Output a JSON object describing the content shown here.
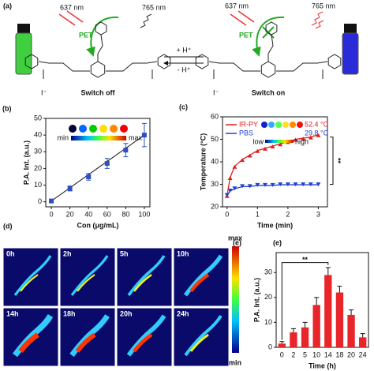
{
  "panel_a": {
    "label": "(a)",
    "wavelength_excite": "637 nm",
    "wavelength_emit": "765 nm",
    "pet": "PET",
    "left_caption": "Switch off",
    "right_caption": "Switch on",
    "forward": "+ H⁺",
    "backward": "- H⁺",
    "counter_ion": "I⁻"
  },
  "panel_d": {
    "label": "(d)",
    "times": [
      "0h",
      "2h",
      "5h",
      "10h",
      "14h",
      "18h",
      "20h",
      "24h"
    ],
    "colorbar_max": "max",
    "colorbar_min": "min"
  },
  "chart_data": [
    {
      "type": "errorline",
      "label": "(b)",
      "xlabel": "Con (μg/mL)",
      "ylabel": "P.A. Int. (a.u.)",
      "x": [
        0,
        20,
        40,
        60,
        80,
        100
      ],
      "values": [
        0.5,
        8,
        15,
        23,
        31,
        40
      ],
      "errors": [
        1,
        1.5,
        2,
        3,
        4,
        7
      ],
      "color": "#2d4fc4",
      "xlim": [
        -6,
        106
      ],
      "ylim": [
        -3,
        50
      ],
      "xticks": [
        0,
        20,
        40,
        60,
        80,
        100
      ],
      "yticks": [
        0,
        10,
        20,
        30,
        40,
        50
      ],
      "colorbar_min": "min",
      "colorbar_max": "max"
    },
    {
      "type": "line",
      "label": "(c)",
      "xlabel": "Time (min)",
      "ylabel": "Temperature (°C)",
      "x": [
        0,
        0.1,
        0.25,
        0.5,
        0.75,
        1,
        1.25,
        1.5,
        1.75,
        2,
        2.25,
        2.5,
        2.75,
        3
      ],
      "series": [
        {
          "name": "IR-PY",
          "color": "#e02020",
          "values": [
            25,
            33,
            38,
            41,
            43,
            45,
            46,
            47,
            48,
            49,
            50,
            50.5,
            51,
            52
          ]
        },
        {
          "name": "PBS",
          "color": "#2040d0",
          "values": [
            25,
            27,
            28,
            29,
            29,
            29.5,
            29.5,
            29.5,
            29.8,
            29.8,
            29.8,
            29.8,
            29.8,
            29.8
          ]
        }
      ],
      "xlim": [
        -0.15,
        3.3
      ],
      "ylim": [
        20,
        60
      ],
      "xticks": [
        0,
        1,
        2,
        3
      ],
      "yticks": [
        20,
        30,
        40,
        50,
        60
      ],
      "annotations": [
        "52.4 °C",
        "29.8 °C"
      ],
      "colorbar_low": "low",
      "colorbar_high": "high",
      "significance": "**"
    },
    {
      "type": "bar",
      "label": "(e)",
      "xlabel": "Time (h)",
      "ylabel": "P.A. Int. (a.u.)",
      "categories": [
        "0",
        "2",
        "5",
        "10",
        "14",
        "18",
        "20",
        "24"
      ],
      "values": [
        1.5,
        6,
        8,
        17,
        29,
        22,
        13,
        4
      ],
      "errors": [
        0.8,
        1.5,
        2,
        3,
        3,
        2.5,
        2,
        1.5
      ],
      "color": "#e8262a",
      "ylim": [
        0,
        38
      ],
      "yticks": [
        0,
        10,
        20,
        30
      ],
      "significance": "**"
    }
  ]
}
